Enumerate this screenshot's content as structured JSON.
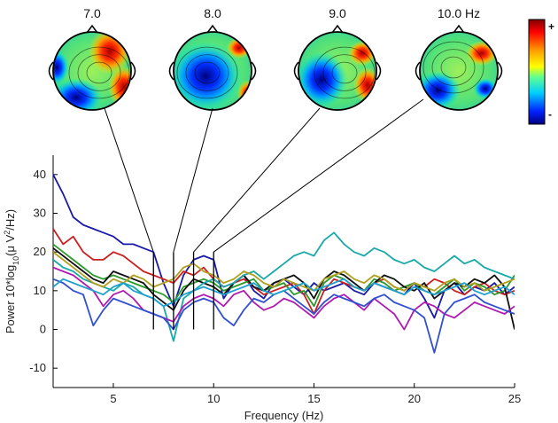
{
  "chart_data": {
    "type": "line",
    "title": "",
    "xlabel": "Frequency (Hz)",
    "ylabel_main": "Power 10*log",
    "ylabel_sub": "10",
    "ylabel_tail": "(μ V",
    "ylabel_sup": "2",
    "ylabel_end": "/Hz)",
    "xlim": [
      2,
      25
    ],
    "ylim": [
      -15,
      45
    ],
    "xticks": [
      5,
      10,
      15,
      20,
      25
    ],
    "yticks": [
      -10,
      0,
      10,
      20,
      30,
      40
    ],
    "x": [
      2,
      2.5,
      3,
      3.5,
      4,
      4.5,
      5,
      5.5,
      6,
      6.5,
      7,
      7.5,
      8,
      8.5,
      9,
      9.5,
      10,
      10.5,
      11,
      11.5,
      12,
      12.5,
      13,
      13.5,
      14,
      14.5,
      15,
      15.5,
      16,
      16.5,
      17,
      17.5,
      18,
      18.5,
      19,
      19.5,
      20,
      20.5,
      21,
      21.5,
      22,
      22.5,
      23,
      23.5,
      24,
      24.5,
      25
    ],
    "series": [
      {
        "color": "#1a1aa8",
        "values": [
          40,
          35,
          29,
          27,
          26,
          25,
          24,
          22,
          22,
          21,
          20,
          12,
          6,
          14,
          18,
          19,
          18,
          8,
          12,
          14,
          10,
          8,
          12,
          13,
          11,
          9,
          12,
          10,
          11,
          12,
          10,
          9,
          12,
          11,
          10,
          9,
          12,
          8,
          3,
          10,
          12,
          9,
          11,
          10,
          12,
          9,
          11
        ]
      },
      {
        "color": "#cc2020",
        "values": [
          26,
          22,
          24,
          20,
          18,
          18,
          20,
          19,
          17,
          15,
          14,
          13,
          12,
          15,
          14,
          16,
          13,
          11,
          12,
          13,
          11,
          9,
          10,
          11,
          12,
          9,
          4,
          10,
          13,
          12,
          11,
          10,
          12,
          13,
          11,
          10,
          12,
          11,
          13,
          12,
          10,
          9,
          11,
          12,
          10,
          9,
          10
        ]
      },
      {
        "color": "#2a9a2a",
        "values": [
          22,
          20,
          18,
          16,
          14,
          13,
          14,
          13,
          12,
          11,
          10,
          9,
          7,
          11,
          12,
          13,
          12,
          10,
          11,
          12,
          13,
          10,
          11,
          12,
          9,
          10,
          6,
          12,
          14,
          13,
          11,
          10,
          13,
          12,
          10,
          11,
          12,
          10,
          9,
          11,
          13,
          10,
          12,
          11,
          9,
          10,
          14
        ]
      },
      {
        "color": "#111111",
        "values": [
          21,
          19,
          17,
          15,
          13,
          12,
          15,
          14,
          13,
          12,
          9,
          7,
          5,
          10,
          13,
          12,
          11,
          9,
          12,
          14,
          11,
          10,
          12,
          13,
          14,
          12,
          8,
          13,
          15,
          14,
          12,
          10,
          12,
          14,
          13,
          11,
          10,
          12,
          8,
          10,
          12,
          11,
          13,
          12,
          14,
          11,
          0
        ]
      },
      {
        "color": "#1aa8a8",
        "values": [
          18,
          16,
          15,
          13,
          12,
          11,
          10,
          12,
          11,
          9,
          8,
          6,
          -3,
          8,
          10,
          12,
          13,
          11,
          12,
          14,
          15,
          13,
          15,
          17,
          19,
          20,
          19,
          23,
          25,
          22,
          20,
          19,
          21,
          20,
          18,
          17,
          18,
          16,
          15,
          17,
          19,
          17,
          18,
          16,
          15,
          14,
          13
        ]
      },
      {
        "color": "#b01ab0",
        "values": [
          16,
          15,
          14,
          12,
          10,
          6,
          9,
          10,
          8,
          5,
          4,
          3,
          2,
          6,
          8,
          9,
          8,
          6,
          9,
          10,
          7,
          5,
          6,
          8,
          7,
          5,
          3,
          6,
          8,
          9,
          7,
          5,
          8,
          6,
          4,
          0,
          5,
          7,
          6,
          4,
          3,
          5,
          7,
          6,
          5,
          4,
          6
        ]
      },
      {
        "color": "#b0a020",
        "values": [
          20,
          18,
          16,
          14,
          12,
          11,
          13,
          12,
          14,
          13,
          11,
          12,
          13,
          16,
          17,
          15,
          14,
          12,
          13,
          15,
          14,
          12,
          11,
          13,
          12,
          11,
          10,
          13,
          14,
          15,
          13,
          12,
          14,
          13,
          11,
          10,
          12,
          11,
          10,
          12,
          13,
          11,
          12,
          10,
          11,
          12,
          13
        ]
      },
      {
        "color": "#3050d0",
        "values": [
          13,
          12,
          10,
          9,
          1,
          5,
          8,
          7,
          6,
          5,
          4,
          3,
          0,
          5,
          7,
          8,
          7,
          3,
          1,
          5,
          8,
          7,
          9,
          10,
          8,
          6,
          4,
          7,
          9,
          8,
          7,
          6,
          8,
          9,
          7,
          6,
          5,
          3,
          -6,
          4,
          7,
          8,
          9,
          7,
          6,
          5,
          4
        ]
      },
      {
        "color": "#20a0d0",
        "values": [
          11,
          13,
          12,
          11,
          10,
          9,
          11,
          12,
          10,
          9,
          8,
          6,
          7,
          9,
          10,
          11,
          10,
          9,
          10,
          11,
          12,
          10,
          9,
          10,
          11,
          12,
          10,
          11,
          12,
          13,
          11,
          10,
          12,
          11,
          10,
          9,
          11,
          10,
          9,
          10,
          11,
          12,
          10,
          9,
          10,
          11,
          9
        ]
      }
    ],
    "marker_freqs": [
      7,
      8,
      9,
      10
    ],
    "topomaps": [
      {
        "label": "7.0"
      },
      {
        "label": "8.0"
      },
      {
        "label": "9.0"
      },
      {
        "label": "10.0 Hz"
      }
    ],
    "colorbar": {
      "max_label": "+",
      "min_label": "-"
    }
  }
}
